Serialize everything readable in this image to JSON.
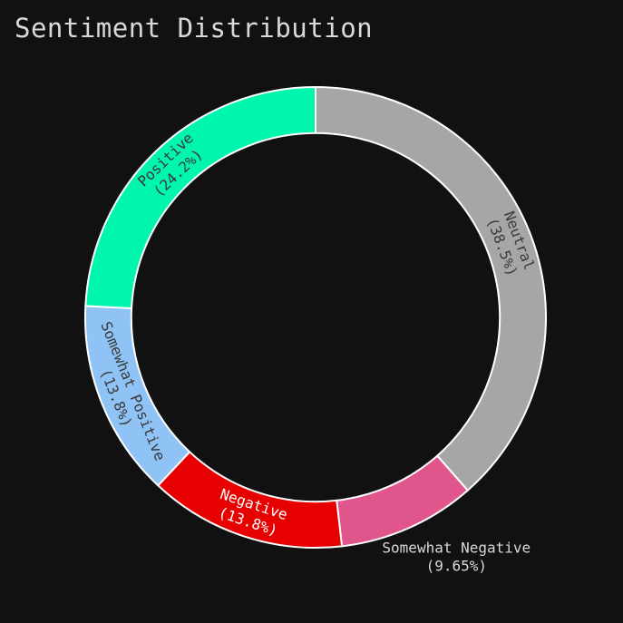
{
  "chart_data": {
    "type": "pie",
    "title": "Sentiment Distribution",
    "slices": [
      {
        "label": "Neutral",
        "percent_label": "(38.5%)",
        "value": 38.5,
        "color": "#a6a6a6",
        "text_color": "#3a3a3a"
      },
      {
        "label": "Somewhat Negative",
        "percent_label": "(9.65%)",
        "value": 9.65,
        "color": "#e0558b",
        "text_color": "#d9d9d9"
      },
      {
        "label": "Negative",
        "percent_label": "(13.8%)",
        "value": 13.8,
        "color": "#e60000",
        "text_color": "#ffffff"
      },
      {
        "label": "Somewhat Positive",
        "percent_label": "(13.8%)",
        "value": 13.8,
        "color": "#8fc2f5",
        "text_color": "#3a3a3a"
      },
      {
        "label": "Positive",
        "percent_label": "(24.2%)",
        "value": 24.2,
        "color": "#00f5ad",
        "text_color": "#3a3a3a"
      }
    ],
    "hole": 0.8,
    "direction": "clockwise",
    "start": "top",
    "background": "#111111",
    "separator_color": "#ffffff"
  }
}
